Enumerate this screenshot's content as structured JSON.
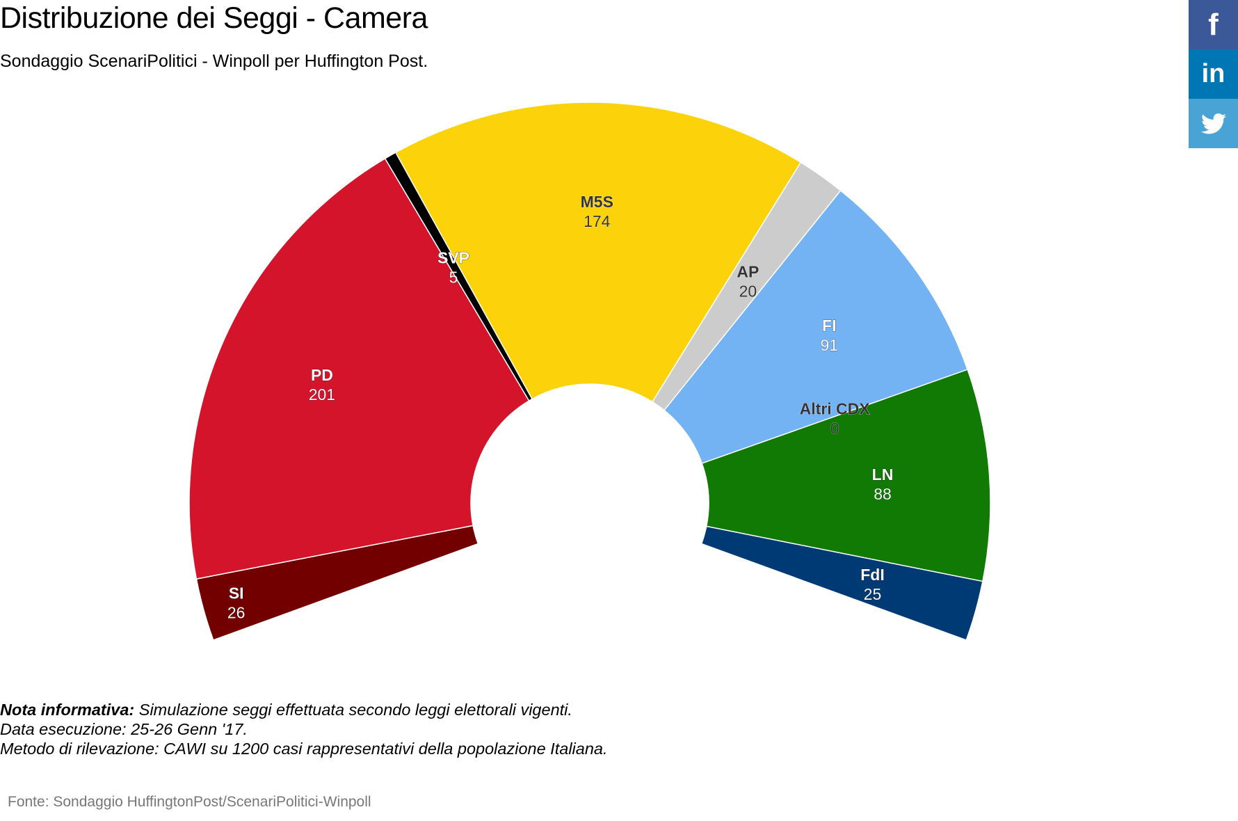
{
  "header": {
    "title": "Distribuzione dei Seggi - Camera",
    "subtitle": "Sondaggio ScenariPolitici - Winpoll per Huffington Post."
  },
  "chart_data": {
    "type": "parliament-semicircle",
    "title": "Distribuzione dei Seggi - Camera",
    "subtitle": "Sondaggio ScenariPolitici - Winpoll per Huffington Post.",
    "start_angle_deg": -110,
    "end_angle_deg": 110,
    "segments": [
      {
        "name": "SI",
        "seats": 26,
        "color": "#720000"
      },
      {
        "name": "PD",
        "seats": 201,
        "color": "#d3142b"
      },
      {
        "name": "SVP",
        "seats": 5,
        "color": "#000000"
      },
      {
        "name": "M5S",
        "seats": 174,
        "color": "#fcd30a"
      },
      {
        "name": "AP",
        "seats": 20,
        "color": "#cccccc"
      },
      {
        "name": "FI",
        "seats": 91,
        "color": "#73b3f4"
      },
      {
        "name": "Altri CDX",
        "seats": 0,
        "color": "#444444"
      },
      {
        "name": "LN",
        "seats": 88,
        "color": "#117a04"
      },
      {
        "name": "FdI",
        "seats": 25,
        "color": "#003a75"
      }
    ]
  },
  "notes": {
    "label": "Nota informativa:",
    "line1": " Simulazione seggi effettuata secondo leggi elettorali vigenti.",
    "line2": "Data esecuzione: 25-26 Genn '17.",
    "line3": "Metodo di rilevazione: CAWI su 1200 casi rappresentativi della popolazione Italiana."
  },
  "source": "Fonte: Sondaggio HuffingtonPost/ScenariPolitici-Winpoll",
  "share": {
    "facebook_icon": "facebook-icon",
    "facebook_glyph": "f",
    "linkedin_icon": "linkedin-icon",
    "linkedin_glyph": "in",
    "twitter_icon": "twitter-icon"
  }
}
